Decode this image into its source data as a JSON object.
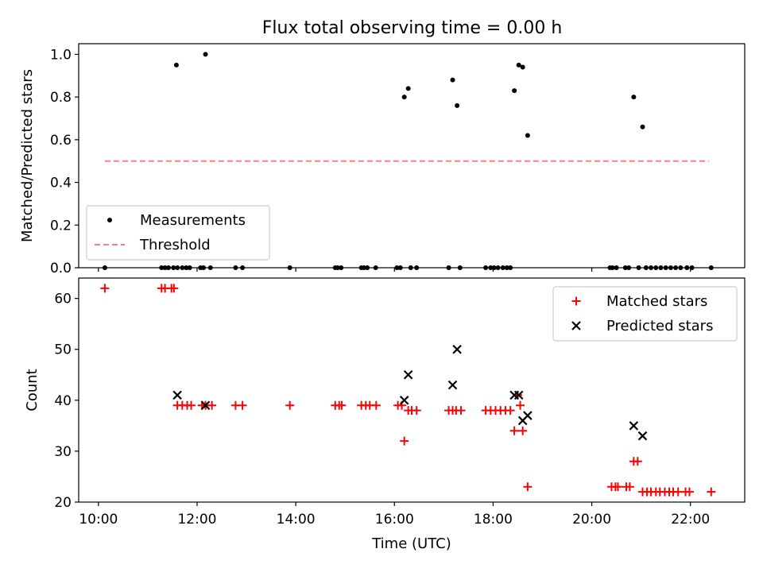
{
  "figure": {
    "title": "Flux total observing time = 0.00 h"
  },
  "chart_data": [
    {
      "type": "scatter",
      "ylabel": "Matched/Predicted stars",
      "xlabel": "",
      "xlim": [
        9.6,
        23.1
      ],
      "ylim": [
        0,
        1.05
      ],
      "yticks": [
        0.0,
        0.2,
        0.4,
        0.6,
        0.8,
        1.0
      ],
      "ytick_labels": [
        "0.0",
        "0.2",
        "0.4",
        "0.6",
        "0.8",
        "1.0"
      ],
      "xticks": [
        10,
        12,
        14,
        16,
        18,
        20,
        22
      ],
      "legend": {
        "position": "lower-left",
        "entries": [
          {
            "label": "Measurements",
            "marker": "dot",
            "color": "#000000"
          },
          {
            "label": "Threshold",
            "marker": "dashed-line",
            "color": "#ff7f7f"
          }
        ]
      },
      "threshold": {
        "value": 0.5,
        "x_from": 10.13,
        "x_to": 22.37,
        "color": "#ff7f7f"
      },
      "series": [
        {
          "name": "Measurements",
          "color": "#000000",
          "points": [
            {
              "x": 10.13,
              "y": 0
            },
            {
              "x": 11.28,
              "y": 0
            },
            {
              "x": 11.35,
              "y": 0
            },
            {
              "x": 11.42,
              "y": 0
            },
            {
              "x": 11.52,
              "y": 0
            },
            {
              "x": 11.58,
              "y": 0.95
            },
            {
              "x": 11.6,
              "y": 0
            },
            {
              "x": 11.7,
              "y": 0
            },
            {
              "x": 11.78,
              "y": 0
            },
            {
              "x": 11.85,
              "y": 0
            },
            {
              "x": 12.07,
              "y": 0
            },
            {
              "x": 12.13,
              "y": 0
            },
            {
              "x": 12.17,
              "y": 1.0
            },
            {
              "x": 12.27,
              "y": 0
            },
            {
              "x": 12.78,
              "y": 0
            },
            {
              "x": 12.92,
              "y": 0
            },
            {
              "x": 13.88,
              "y": 0
            },
            {
              "x": 14.8,
              "y": 0
            },
            {
              "x": 14.85,
              "y": 0
            },
            {
              "x": 14.92,
              "y": 0
            },
            {
              "x": 15.33,
              "y": 0
            },
            {
              "x": 15.38,
              "y": 0
            },
            {
              "x": 15.45,
              "y": 0
            },
            {
              "x": 15.62,
              "y": 0
            },
            {
              "x": 16.05,
              "y": 0
            },
            {
              "x": 16.12,
              "y": 0
            },
            {
              "x": 16.2,
              "y": 0.8
            },
            {
              "x": 16.28,
              "y": 0.84
            },
            {
              "x": 16.33,
              "y": 0
            },
            {
              "x": 16.45,
              "y": 0
            },
            {
              "x": 17.1,
              "y": 0
            },
            {
              "x": 17.18,
              "y": 0.88
            },
            {
              "x": 17.27,
              "y": 0.76
            },
            {
              "x": 17.33,
              "y": 0
            },
            {
              "x": 17.85,
              "y": 0
            },
            {
              "x": 17.95,
              "y": 0
            },
            {
              "x": 18.02,
              "y": 0
            },
            {
              "x": 18.1,
              "y": 0
            },
            {
              "x": 18.2,
              "y": 0
            },
            {
              "x": 18.28,
              "y": 0
            },
            {
              "x": 18.35,
              "y": 0
            },
            {
              "x": 18.43,
              "y": 0.83
            },
            {
              "x": 18.52,
              "y": 0.95
            },
            {
              "x": 18.6,
              "y": 0.94
            },
            {
              "x": 18.7,
              "y": 0.62
            },
            {
              "x": 20.37,
              "y": 0
            },
            {
              "x": 20.42,
              "y": 0
            },
            {
              "x": 20.5,
              "y": 0
            },
            {
              "x": 20.68,
              "y": 0
            },
            {
              "x": 20.75,
              "y": 0
            },
            {
              "x": 20.85,
              "y": 0.8
            },
            {
              "x": 20.95,
              "y": 0
            },
            {
              "x": 21.03,
              "y": 0.66
            },
            {
              "x": 21.1,
              "y": 0
            },
            {
              "x": 21.2,
              "y": 0
            },
            {
              "x": 21.3,
              "y": 0
            },
            {
              "x": 21.4,
              "y": 0
            },
            {
              "x": 21.5,
              "y": 0
            },
            {
              "x": 21.6,
              "y": 0
            },
            {
              "x": 21.7,
              "y": 0
            },
            {
              "x": 21.8,
              "y": 0
            },
            {
              "x": 21.93,
              "y": 0
            },
            {
              "x": 22.03,
              "y": 0
            },
            {
              "x": 22.42,
              "y": 0
            }
          ]
        }
      ]
    },
    {
      "type": "scatter",
      "xlabel": "Time (UTC)",
      "ylabel": "Count",
      "xlim": [
        9.6,
        23.1
      ],
      "ylim": [
        20,
        64
      ],
      "yticks": [
        20,
        30,
        40,
        50,
        60
      ],
      "ytick_labels": [
        "20",
        "30",
        "40",
        "50",
        "60"
      ],
      "xticks": [
        10,
        12,
        14,
        16,
        18,
        20,
        22
      ],
      "xtick_labels": [
        "10:00",
        "12:00",
        "14:00",
        "16:00",
        "18:00",
        "20:00",
        "22:00"
      ],
      "legend": {
        "position": "upper-right",
        "entries": [
          {
            "label": "Matched stars",
            "marker": "plus",
            "color": "#ff0000"
          },
          {
            "label": "Predicted stars",
            "marker": "x",
            "color": "#000000"
          }
        ]
      },
      "series": [
        {
          "name": "Matched stars",
          "marker": "plus",
          "color": "#ff0000",
          "points": [
            {
              "x": 10.13,
              "y": 62
            },
            {
              "x": 11.28,
              "y": 62
            },
            {
              "x": 11.35,
              "y": 62
            },
            {
              "x": 11.48,
              "y": 62
            },
            {
              "x": 11.53,
              "y": 62
            },
            {
              "x": 11.6,
              "y": 39
            },
            {
              "x": 11.7,
              "y": 39
            },
            {
              "x": 11.8,
              "y": 39
            },
            {
              "x": 11.88,
              "y": 39
            },
            {
              "x": 12.1,
              "y": 39
            },
            {
              "x": 12.17,
              "y": 39
            },
            {
              "x": 12.3,
              "y": 39
            },
            {
              "x": 12.78,
              "y": 39
            },
            {
              "x": 12.92,
              "y": 39
            },
            {
              "x": 13.88,
              "y": 39
            },
            {
              "x": 14.8,
              "y": 39
            },
            {
              "x": 14.88,
              "y": 39
            },
            {
              "x": 14.93,
              "y": 39
            },
            {
              "x": 15.33,
              "y": 39
            },
            {
              "x": 15.42,
              "y": 39
            },
            {
              "x": 15.5,
              "y": 39
            },
            {
              "x": 15.63,
              "y": 39
            },
            {
              "x": 16.07,
              "y": 39
            },
            {
              "x": 16.15,
              "y": 39
            },
            {
              "x": 16.2,
              "y": 32
            },
            {
              "x": 16.28,
              "y": 38
            },
            {
              "x": 16.35,
              "y": 38
            },
            {
              "x": 16.45,
              "y": 38
            },
            {
              "x": 17.1,
              "y": 38
            },
            {
              "x": 17.18,
              "y": 38
            },
            {
              "x": 17.25,
              "y": 38
            },
            {
              "x": 17.35,
              "y": 38
            },
            {
              "x": 17.85,
              "y": 38
            },
            {
              "x": 17.95,
              "y": 38
            },
            {
              "x": 18.05,
              "y": 38
            },
            {
              "x": 18.15,
              "y": 38
            },
            {
              "x": 18.25,
              "y": 38
            },
            {
              "x": 18.35,
              "y": 38
            },
            {
              "x": 18.43,
              "y": 34
            },
            {
              "x": 18.5,
              "y": 41
            },
            {
              "x": 18.55,
              "y": 39
            },
            {
              "x": 18.6,
              "y": 34
            },
            {
              "x": 18.7,
              "y": 23
            },
            {
              "x": 20.4,
              "y": 23
            },
            {
              "x": 20.48,
              "y": 23
            },
            {
              "x": 20.53,
              "y": 23
            },
            {
              "x": 20.7,
              "y": 23
            },
            {
              "x": 20.77,
              "y": 23
            },
            {
              "x": 20.85,
              "y": 28
            },
            {
              "x": 20.93,
              "y": 28
            },
            {
              "x": 21.03,
              "y": 22
            },
            {
              "x": 21.12,
              "y": 22
            },
            {
              "x": 21.2,
              "y": 22
            },
            {
              "x": 21.3,
              "y": 22
            },
            {
              "x": 21.38,
              "y": 22
            },
            {
              "x": 21.48,
              "y": 22
            },
            {
              "x": 21.57,
              "y": 22
            },
            {
              "x": 21.65,
              "y": 22
            },
            {
              "x": 21.75,
              "y": 22
            },
            {
              "x": 21.9,
              "y": 22
            },
            {
              "x": 21.98,
              "y": 22
            },
            {
              "x": 22.42,
              "y": 22
            }
          ]
        },
        {
          "name": "Predicted stars",
          "marker": "x",
          "color": "#000000",
          "points": [
            {
              "x": 11.6,
              "y": 41
            },
            {
              "x": 12.17,
              "y": 39
            },
            {
              "x": 16.2,
              "y": 40
            },
            {
              "x": 16.28,
              "y": 45
            },
            {
              "x": 17.18,
              "y": 43
            },
            {
              "x": 17.27,
              "y": 50
            },
            {
              "x": 18.43,
              "y": 41
            },
            {
              "x": 18.52,
              "y": 41
            },
            {
              "x": 18.6,
              "y": 36
            },
            {
              "x": 18.7,
              "y": 37
            },
            {
              "x": 20.85,
              "y": 35
            },
            {
              "x": 21.03,
              "y": 33
            }
          ]
        }
      ]
    }
  ]
}
